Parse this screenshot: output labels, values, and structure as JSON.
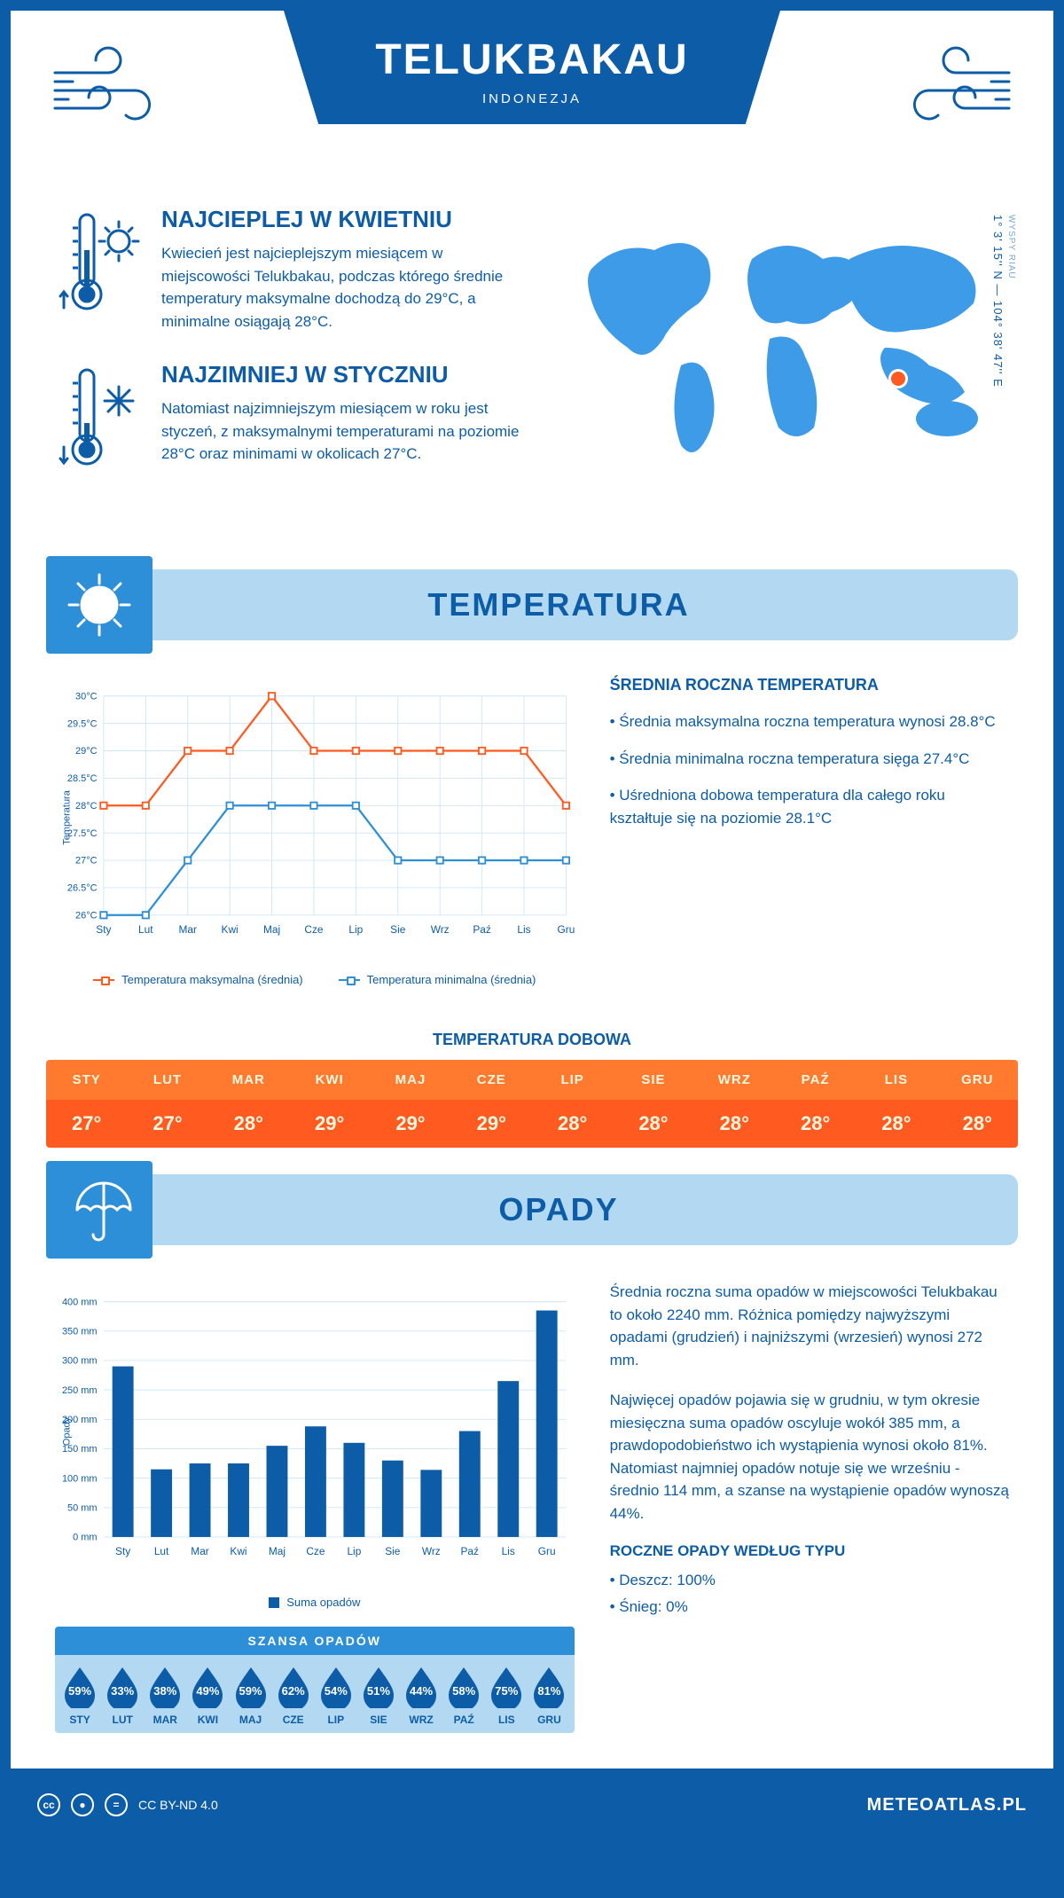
{
  "header": {
    "title": "TELUKBAKAU",
    "subtitle": "INDONEZJA"
  },
  "coords": {
    "region": "WYSPY RIAU",
    "lat": "1° 3' 15'' N",
    "lon": "104° 38' 47'' E"
  },
  "facts": {
    "warm": {
      "title": "NAJCIEPLEJ W KWIETNIU",
      "text": "Kwiecień jest najcieplejszym miesiącem w miejscowości Telukbakau, podczas którego średnie temperatury maksymalne dochodzą do 29°C, a minimalne osiągają 28°C."
    },
    "cold": {
      "title": "NAJZIMNIEJ W STYCZNIU",
      "text": "Natomiast najzimniejszym miesiącem w roku jest styczeń, z maksymalnymi temperaturami na poziomie 28°C oraz minimami w okolicach 27°C."
    }
  },
  "sections": {
    "temperature": "TEMPERATURA",
    "precipitation": "OPADY"
  },
  "temp_chart": {
    "type": "line",
    "months": [
      "Sty",
      "Lut",
      "Mar",
      "Kwi",
      "Maj",
      "Cze",
      "Lip",
      "Sie",
      "Wrz",
      "Paź",
      "Lis",
      "Gru"
    ],
    "max_series": [
      28,
      28,
      29,
      29,
      30,
      29,
      29,
      29,
      29,
      29,
      29,
      28
    ],
    "min_series": [
      26,
      26,
      27,
      28,
      28,
      28,
      28,
      27,
      27,
      27,
      27,
      27
    ],
    "max_color": "#ff5a1f",
    "min_color": "#2e8fd9",
    "grid_color": "#cfe6f7",
    "bg_color": "#ffffff",
    "ymin": 26,
    "ymax": 30,
    "ystep": 0.5,
    "y_axis_label": "Temperatura",
    "legend_max": "Temperatura maksymalna (średnia)",
    "legend_min": "Temperatura minimalna (średnia)"
  },
  "temp_info": {
    "heading": "ŚREDNIA ROCZNA TEMPERATURA",
    "p1": "• Średnia maksymalna roczna temperatura wynosi 28.8°C",
    "p2": "• Średnia minimalna roczna temperatura sięga 27.4°C",
    "p3": "• Uśredniona dobowa temperatura dla całego roku kształtuje się na poziomie 28.1°C"
  },
  "daily": {
    "title": "TEMPERATURA DOBOWA",
    "months": [
      "STY",
      "LUT",
      "MAR",
      "KWI",
      "MAJ",
      "CZE",
      "LIP",
      "SIE",
      "WRZ",
      "PAŹ",
      "LIS",
      "GRU"
    ],
    "values": [
      "27°",
      "27°",
      "28°",
      "29°",
      "29°",
      "29°",
      "28°",
      "28°",
      "28°",
      "28°",
      "28°",
      "28°"
    ],
    "head_bg": "#ff7a2e",
    "body_bg": "#ff5a1f"
  },
  "precip_chart": {
    "type": "bar",
    "months": [
      "Sty",
      "Lut",
      "Mar",
      "Kwi",
      "Maj",
      "Cze",
      "Lip",
      "Sie",
      "Wrz",
      "Paź",
      "Lis",
      "Gru"
    ],
    "values": [
      290,
      115,
      125,
      125,
      155,
      188,
      160,
      130,
      114,
      180,
      265,
      385
    ],
    "bar_color": "#0d5ca8",
    "grid_color": "#cfe6f7",
    "ymin": 0,
    "ymax": 400,
    "ystep": 50,
    "y_axis_label": "Opady",
    "legend_label": "Suma opadów"
  },
  "precip_info": {
    "p1": "Średnia roczna suma opadów w miejscowości Telukbakau to około 2240 mm. Różnica pomiędzy najwyższymi opadami (grudzień) i najniższymi (wrzesień) wynosi 272 mm.",
    "p2": "Najwięcej opadów pojawia się w grudniu, w tym okresie miesięczna suma opadów oscyluje wokół 385 mm, a prawdopodobieństwo ich wystąpienia wynosi około 81%. Natomiast najmniej opadów notuje się we wrześniu - średnio 114 mm, a szanse na wystąpienie opadów wynoszą 44%.",
    "type_heading": "ROCZNE OPADY WEDŁUG TYPU",
    "rain": "• Deszcz: 100%",
    "snow": "• Śnieg: 0%"
  },
  "chance": {
    "title": "SZANSA OPADÓW",
    "months": [
      "STY",
      "LUT",
      "MAR",
      "KWI",
      "MAJ",
      "CZE",
      "LIP",
      "SIE",
      "WRZ",
      "PAŹ",
      "LIS",
      "GRU"
    ],
    "values": [
      "59%",
      "33%",
      "38%",
      "49%",
      "59%",
      "62%",
      "54%",
      "51%",
      "44%",
      "58%",
      "75%",
      "81%"
    ],
    "drop_color": "#0d5ca8",
    "bg_color": "#b3d9f2"
  },
  "footer": {
    "license": "CC BY-ND 4.0",
    "site": "METEOATLAS.PL"
  },
  "colors": {
    "primary": "#0d5ca8",
    "light_blue": "#b3d9f2",
    "mid_blue": "#2e8fd9",
    "orange": "#ff5a1f"
  }
}
